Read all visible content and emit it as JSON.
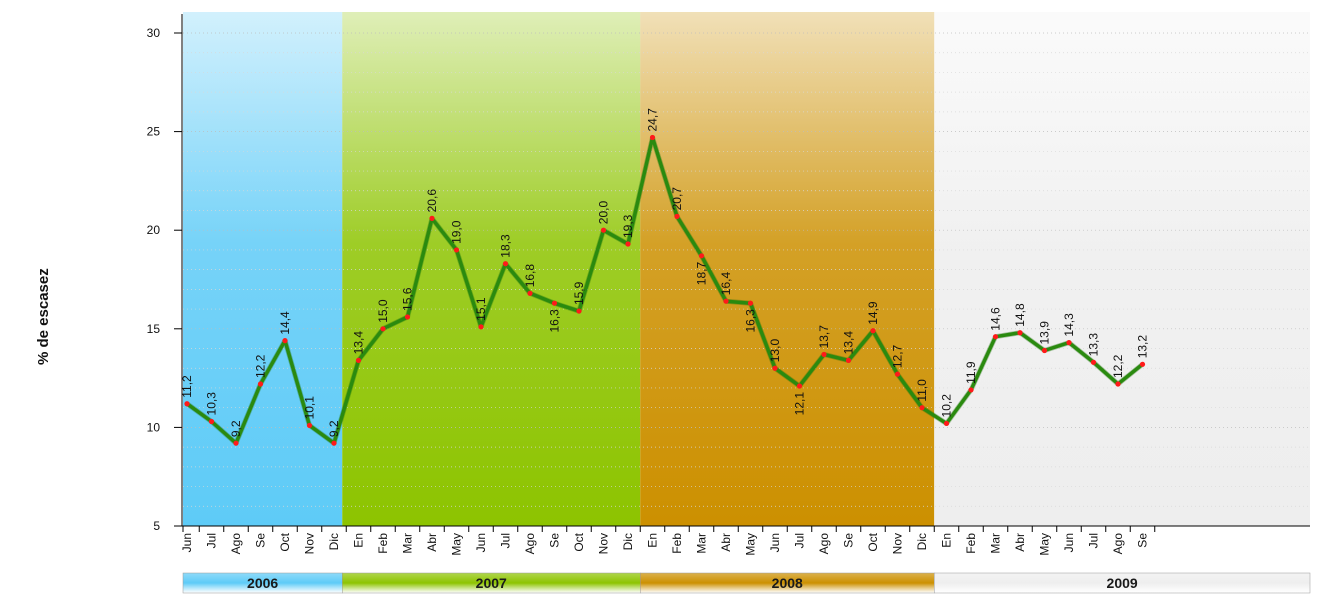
{
  "chart_data": {
    "type": "line",
    "ylabel": "% de escasez",
    "ylim": [
      5,
      30
    ],
    "yticks": [
      5,
      10,
      15,
      20,
      25,
      30
    ],
    "grid": true,
    "categories": [
      "Jun",
      "Jul",
      "Ago",
      "Se",
      "Oct",
      "Nov",
      "Dic",
      "En",
      "Feb",
      "Mar",
      "Abr",
      "May",
      "Jun",
      "Jul",
      "Ago",
      "Se",
      "Oct",
      "Nov",
      "Dic",
      "En",
      "Feb",
      "Mar",
      "Abr",
      "May",
      "Jun",
      "Jul",
      "Ago",
      "Se",
      "Oct",
      "Nov",
      "Dic",
      "En",
      "Feb",
      "Mar",
      "Abr",
      "May",
      "Jun",
      "Jul",
      "Ago",
      "Se"
    ],
    "values": [
      11.2,
      10.3,
      9.2,
      12.2,
      14.4,
      10.1,
      9.2,
      13.4,
      15.0,
      15.6,
      20.6,
      19.0,
      15.1,
      18.3,
      16.8,
      16.3,
      15.9,
      20.0,
      19.3,
      24.7,
      20.7,
      18.7,
      16.4,
      16.3,
      13.0,
      12.1,
      13.7,
      13.4,
      14.9,
      12.7,
      11.0,
      10.2,
      11.9,
      14.6,
      14.8,
      13.9,
      14.3,
      13.3,
      12.2,
      13.2
    ],
    "labels": [
      "11,2",
      "10,3",
      "9,2",
      "12,2",
      "14,4",
      "10,1",
      "9,2",
      "13,4",
      "15,0",
      "15,6",
      "20,6",
      "19,0",
      "15,1",
      "18,3",
      "16,8",
      "16,3",
      "15,9",
      "20,0",
      "19,3",
      "24,7",
      "20,7",
      "18,7",
      "16,4",
      "16,3",
      "13,0",
      "12,1",
      "13,7",
      "13,4",
      "14,9",
      "12,7",
      "11,0",
      "10,2",
      "11,9",
      "14,6",
      "14,8",
      "13,9",
      "14,3",
      "13,3",
      "12,2",
      "13,2"
    ],
    "label_position": [
      "above",
      "above",
      "above",
      "above",
      "above",
      "above",
      "above",
      "above",
      "above",
      "above",
      "above",
      "above",
      "above",
      "above",
      "above",
      "below",
      "above",
      "above",
      "above",
      "above",
      "above",
      "below",
      "above",
      "below",
      "above",
      "below",
      "above",
      "above",
      "above",
      "above",
      "above",
      "above",
      "above",
      "above",
      "above",
      "above",
      "above",
      "above",
      "above",
      "above"
    ],
    "years": [
      {
        "label": "2006",
        "start": 0,
        "end": 6,
        "color": "#5ecbf7"
      },
      {
        "label": "2007",
        "start": 7,
        "end": 18,
        "color": "#8dc400"
      },
      {
        "label": "2008",
        "start": 19,
        "end": 30,
        "color": "#cc9000"
      },
      {
        "label": "2009",
        "start": 31,
        "end": 39,
        "color": "#eeeeee"
      }
    ],
    "line_color": "#2a8a0f",
    "marker_color": "#ff1a1a"
  }
}
